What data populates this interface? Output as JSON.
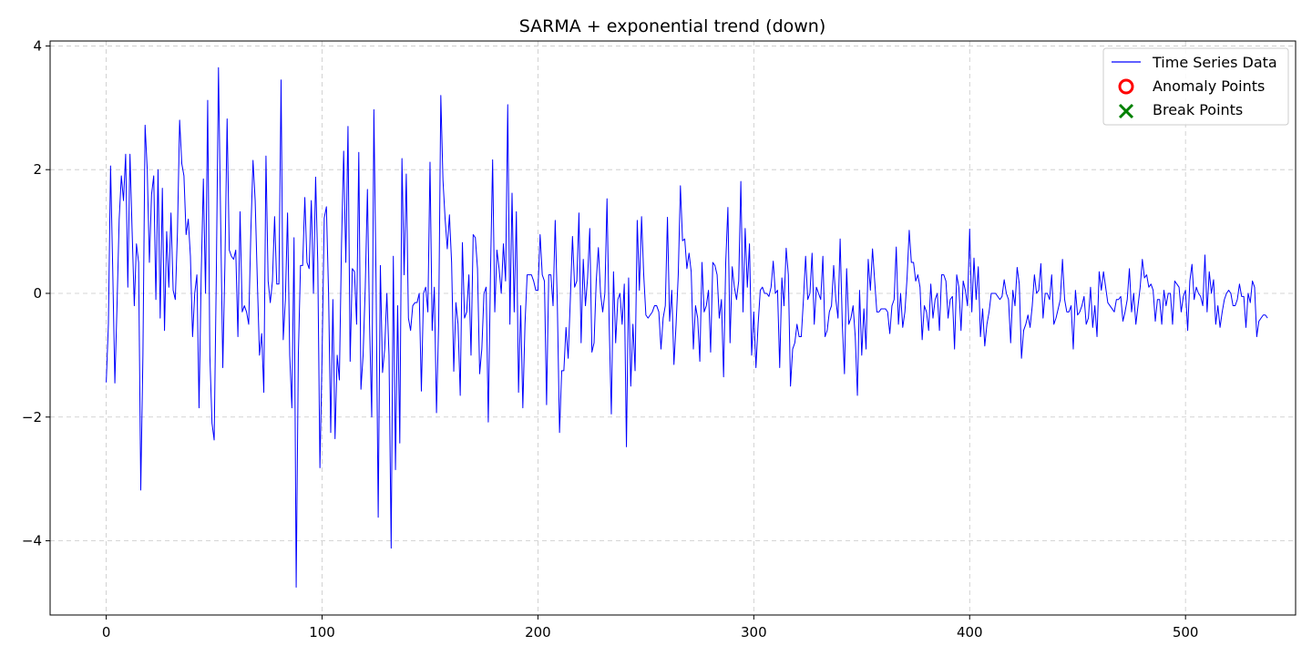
{
  "chart_data": {
    "type": "line",
    "title": "SARMA + exponential trend (down)",
    "xlabel": "",
    "ylabel": "",
    "xlim": [
      -26,
      551
    ],
    "ylim": [
      -5.2,
      4.08
    ],
    "x_ticks": [
      0,
      100,
      200,
      300,
      400,
      500
    ],
    "y_ticks": [
      -4,
      -2,
      0,
      2,
      4
    ],
    "grid": true,
    "legend_position": "top-right",
    "legend": [
      "Time Series Data",
      "Anomaly Points",
      "Break Points"
    ],
    "colors": {
      "line": "#0000ff",
      "anomaly": "#ff0000",
      "break": "#008000",
      "grid": "#b0b0b0"
    },
    "series": [
      {
        "name": "Time Series Data",
        "x_start": 0,
        "x_step": 1,
        "values": [
          -1.44,
          -0.5,
          2.06,
          0.4,
          -1.45,
          -0.2,
          1.2,
          1.9,
          1.5,
          2.25,
          0.1,
          2.25,
          1.0,
          -0.2,
          0.8,
          0.5,
          -3.18,
          -1.0,
          2.72,
          2.0,
          0.5,
          1.6,
          1.9,
          -0.1,
          2.0,
          -0.4,
          1.7,
          -0.6,
          1.0,
          0.1,
          1.3,
          0.05,
          -0.1,
          1.0,
          2.8,
          2.1,
          1.9,
          0.95,
          1.2,
          0.6,
          -0.7,
          0.0,
          0.3,
          -1.85,
          0.3,
          1.85,
          0.0,
          3.12,
          -1.0,
          -2.1,
          -2.37,
          0.3,
          3.65,
          1.2,
          -1.2,
          0.5,
          2.82,
          0.7,
          0.6,
          0.55,
          0.7,
          -0.7,
          1.32,
          -0.3,
          -0.2,
          -0.3,
          -0.5,
          1.0,
          2.15,
          1.5,
          0.2,
          -1.0,
          -0.65,
          -1.6,
          2.22,
          0.2,
          -0.15,
          0.2,
          1.24,
          0.15,
          0.15,
          3.45,
          -0.75,
          -0.1,
          1.3,
          -1.0,
          -1.85,
          0.9,
          -4.75,
          -1.0,
          0.45,
          0.45,
          1.55,
          0.5,
          0.4,
          1.5,
          0.0,
          1.88,
          0.5,
          -2.82,
          -1.0,
          1.22,
          1.4,
          0.0,
          -2.25,
          -0.1,
          -2.35,
          -1.0,
          -1.4,
          0.8,
          2.3,
          0.5,
          2.7,
          -1.1,
          0.4,
          0.35,
          -0.5,
          2.28,
          -1.55,
          -1.0,
          0.1,
          1.68,
          -0.5,
          -2.0,
          2.97,
          0.2,
          -3.62,
          0.45,
          -1.28,
          -0.9,
          0.0,
          -1.0,
          -4.12,
          0.6,
          -2.85,
          -0.2,
          -2.42,
          2.18,
          0.3,
          1.93,
          -0.4,
          -0.6,
          -0.2,
          -0.15,
          -0.15,
          0.0,
          -1.58,
          0.0,
          0.1,
          -0.3,
          2.12,
          -0.6,
          0.1,
          -1.93,
          -0.5,
          3.2,
          1.83,
          1.2,
          0.72,
          1.27,
          0.5,
          -1.26,
          -0.15,
          -0.5,
          -1.65,
          0.82,
          -0.4,
          -0.3,
          0.3,
          -1.0,
          0.95,
          0.9,
          0.4,
          -1.3,
          -0.9,
          0.0,
          0.1,
          -2.08,
          0.3,
          2.16,
          -0.3,
          0.7,
          0.4,
          0.0,
          0.8,
          0.2,
          3.05,
          -0.5,
          1.62,
          -0.3,
          1.32,
          -1.6,
          -0.2,
          -1.85,
          -0.5,
          0.3,
          0.3,
          0.3,
          0.2,
          0.05,
          0.05,
          0.95,
          0.3,
          0.2,
          -1.8,
          0.3,
          0.3,
          -0.2,
          1.18,
          -0.2,
          -2.25,
          -1.25,
          -1.25,
          -0.55,
          -1.05,
          -0.1,
          0.92,
          0.1,
          0.2,
          1.3,
          -0.8,
          0.55,
          -0.2,
          0.25,
          1.05,
          -0.95,
          -0.8,
          0.2,
          0.74,
          0.0,
          -0.3,
          0.0,
          1.53,
          -0.5,
          -1.95,
          0.35,
          -0.8,
          -0.1,
          0.0,
          -0.5,
          0.15,
          -2.48,
          0.25,
          -1.5,
          -0.5,
          -1.25,
          1.18,
          0.05,
          1.24,
          0.3,
          -0.35,
          -0.4,
          -0.35,
          -0.3,
          -0.2,
          -0.2,
          -0.3,
          -0.9,
          -0.4,
          -0.2,
          1.23,
          -0.45,
          0.05,
          -1.15,
          -0.5,
          0.3,
          1.74,
          0.85,
          0.88,
          0.4,
          0.65,
          0.35,
          -0.9,
          -0.2,
          -0.4,
          -1.1,
          0.5,
          -0.3,
          -0.2,
          0.05,
          -0.95,
          0.5,
          0.45,
          0.3,
          -0.4,
          -0.1,
          -1.35,
          0.5,
          1.39,
          -0.8,
          0.43,
          0.1,
          -0.1,
          0.2,
          1.81,
          -0.3,
          1.05,
          0.1,
          0.8,
          -1.0,
          -0.3,
          -1.2,
          -0.5,
          0.05,
          0.1,
          0.0,
          0.0,
          -0.05,
          0.1,
          0.52,
          0.0,
          0.05,
          -1.2,
          0.25,
          -0.2,
          0.73,
          0.3,
          -1.5,
          -0.9,
          -0.8,
          -0.5,
          -0.7,
          -0.7,
          -0.1,
          0.6,
          -0.1,
          0.0,
          0.65,
          -0.5,
          0.1,
          0.0,
          -0.1,
          0.6,
          -0.7,
          -0.6,
          -0.3,
          -0.2,
          0.45,
          -0.1,
          -0.4,
          0.88,
          -0.5,
          -1.3,
          0.4,
          -0.5,
          -0.4,
          -0.2,
          -0.7,
          -1.65,
          0.05,
          -1.0,
          -0.25,
          -0.9,
          0.55,
          0.05,
          0.72,
          0.2,
          -0.3,
          -0.3,
          -0.25,
          -0.25,
          -0.25,
          -0.3,
          -0.65,
          -0.2,
          -0.1,
          0.75,
          -0.5,
          0.0,
          -0.55,
          -0.3,
          0.25,
          1.02,
          0.5,
          0.5,
          0.2,
          0.3,
          0.1,
          -0.75,
          -0.2,
          -0.3,
          -0.6,
          0.15,
          -0.4,
          -0.1,
          0.0,
          -0.6,
          0.3,
          0.3,
          0.2,
          -0.4,
          -0.1,
          -0.05,
          -0.9,
          0.3,
          0.1,
          -0.6,
          0.2,
          0.05,
          -0.2,
          1.04,
          -0.3,
          0.57,
          -0.1,
          0.43,
          -0.7,
          -0.25,
          -0.85,
          -0.5,
          -0.3,
          0.0,
          0.0,
          0.0,
          -0.05,
          -0.1,
          -0.05,
          0.22,
          0.0,
          -0.1,
          -0.8,
          0.05,
          -0.2,
          0.42,
          0.15,
          -1.05,
          -0.6,
          -0.5,
          -0.35,
          -0.55,
          -0.2,
          0.3,
          0.0,
          0.05,
          0.48,
          -0.4,
          0.0,
          0.0,
          -0.1,
          0.3,
          -0.5,
          -0.4,
          -0.25,
          -0.1,
          0.55,
          -0.1,
          -0.3,
          -0.3,
          -0.2,
          -0.9,
          0.05,
          -0.35,
          -0.3,
          -0.2,
          -0.05,
          -0.5,
          -0.4,
          0.1,
          -0.55,
          -0.2,
          -0.7,
          0.35,
          0.05,
          0.35,
          0.1,
          -0.15,
          -0.2,
          -0.25,
          -0.3,
          -0.1,
          -0.1,
          -0.05,
          -0.45,
          -0.3,
          -0.1,
          0.4,
          -0.3,
          0.0,
          -0.5,
          -0.2,
          0.1,
          0.55,
          0.25,
          0.3,
          0.1,
          0.15,
          0.05,
          -0.45,
          -0.1,
          -0.1,
          -0.5,
          0.05,
          -0.2,
          0.0,
          0.0,
          -0.5,
          0.2,
          0.15,
          0.1,
          -0.3,
          -0.05,
          0.05,
          -0.6,
          0.2,
          0.47,
          -0.1,
          0.1,
          0.0,
          -0.05,
          -0.2,
          0.62,
          -0.3,
          0.35,
          0.0,
          0.22,
          -0.5,
          -0.2,
          -0.55,
          -0.3,
          -0.1,
          0.0,
          0.05,
          0.0,
          -0.2,
          -0.2,
          -0.1,
          0.15,
          -0.05,
          -0.05,
          -0.55,
          0.0,
          -0.15,
          0.2,
          0.1,
          -0.7,
          -0.45,
          -0.4,
          -0.35,
          -0.35,
          -0.4
        ]
      },
      {
        "name": "Anomaly Points",
        "values": []
      },
      {
        "name": "Break Points",
        "values": []
      }
    ]
  }
}
